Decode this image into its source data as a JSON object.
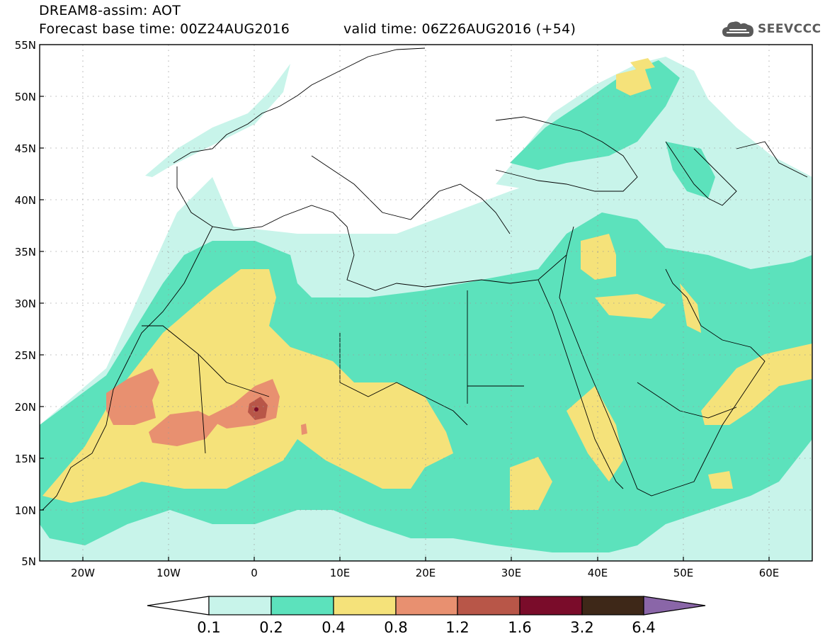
{
  "header": {
    "title": "DREAM8-assim: AOT",
    "base_time": "Forecast base time: 00Z24AUG2016",
    "valid_time": "valid time: 06Z26AUG2016 (+54)"
  },
  "logo": {
    "text": "SEEVCCC",
    "icon": "cloud-icon"
  },
  "map": {
    "lon_range": [
      -25,
      65
    ],
    "lat_range": [
      5,
      55
    ],
    "lon_ticks": [
      {
        "value": -20,
        "label": "20W"
      },
      {
        "value": -10,
        "label": "10W"
      },
      {
        "value": 0,
        "label": "0"
      },
      {
        "value": 10,
        "label": "10E"
      },
      {
        "value": 20,
        "label": "20E"
      },
      {
        "value": 30,
        "label": "30E"
      },
      {
        "value": 40,
        "label": "40E"
      },
      {
        "value": 50,
        "label": "50E"
      },
      {
        "value": 60,
        "label": "60E"
      }
    ],
    "lat_ticks": [
      {
        "value": 55,
        "label": "55N"
      },
      {
        "value": 50,
        "label": "50N"
      },
      {
        "value": 45,
        "label": "45N"
      },
      {
        "value": 40,
        "label": "40N"
      },
      {
        "value": 35,
        "label": "35N"
      },
      {
        "value": 30,
        "label": "30N"
      },
      {
        "value": 25,
        "label": "25N"
      },
      {
        "value": 20,
        "label": "20N"
      },
      {
        "value": 15,
        "label": "15N"
      },
      {
        "value": 10,
        "label": "10N"
      },
      {
        "value": 5,
        "label": "5N"
      }
    ],
    "grid": "dotted"
  },
  "colorbar": {
    "labels": [
      "0.1",
      "0.2",
      "0.4",
      "0.8",
      "1.2",
      "1.6",
      "3.2",
      "6.4"
    ],
    "colors": [
      "#ffffff",
      "#c8f4ea",
      "#5ce2bc",
      "#f5e27a",
      "#e89070",
      "#b85648",
      "#7a0c2a",
      "#3e2818",
      "#8a66a8"
    ]
  }
}
